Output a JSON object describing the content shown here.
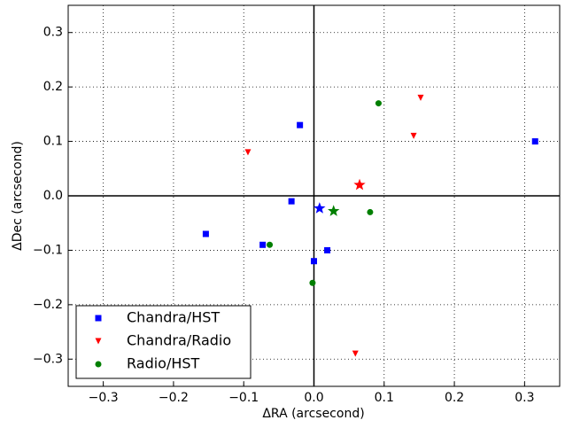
{
  "chart_data": {
    "type": "scatter",
    "x_label": "ΔRA (arcsecond)",
    "y_label": "ΔDec (arcsecond)",
    "xlim": [
      -0.35,
      0.35
    ],
    "ylim": [
      -0.35,
      0.35
    ],
    "xticks": [
      {
        "value": -0.3,
        "label": "−0.3"
      },
      {
        "value": -0.2,
        "label": "−0.2"
      },
      {
        "value": -0.1,
        "label": "−0.1"
      },
      {
        "value": 0,
        "label": "0.0"
      },
      {
        "value": 0.1,
        "label": "0.1"
      },
      {
        "value": 0.2,
        "label": "0.2"
      },
      {
        "value": 0.3,
        "label": "0.3"
      }
    ],
    "yticks": [
      {
        "value": -0.3,
        "label": "−0.3"
      },
      {
        "value": -0.2,
        "label": "−0.2"
      },
      {
        "value": -0.1,
        "label": "−0.1"
      },
      {
        "value": 0,
        "label": "0.0"
      },
      {
        "value": 0.1,
        "label": "0.1"
      },
      {
        "value": 0.2,
        "label": "0.2"
      },
      {
        "value": 0.3,
        "label": "0.3"
      }
    ],
    "grid": true,
    "legend": "lower left",
    "series": [
      {
        "name": "Chandra/HST",
        "color": "#0000ff",
        "marker": "square",
        "x": [
          -0.02,
          0.315,
          -0.032,
          -0.154,
          -0.073,
          0.0,
          0.019
        ],
        "values": [
          0.13,
          0.1,
          -0.01,
          -0.07,
          -0.09,
          -0.12,
          -0.1
        ],
        "centroid": {
          "x": 0.008,
          "y": -0.023
        }
      },
      {
        "name": "Chandra/Radio",
        "color": "#ff0000",
        "marker": "triangle",
        "x": [
          0.152,
          0.142,
          -0.094,
          0.059
        ],
        "values": [
          0.18,
          0.11,
          0.08,
          -0.29
        ],
        "centroid": {
          "x": 0.065,
          "y": 0.02
        }
      },
      {
        "name": "Radio/HST",
        "color": "#007f00",
        "marker": "circle",
        "x": [
          0.092,
          0.08,
          -0.063,
          -0.002
        ],
        "values": [
          0.17,
          -0.03,
          -0.09,
          -0.16
        ],
        "centroid": {
          "x": 0.028,
          "y": -0.028
        }
      }
    ]
  }
}
